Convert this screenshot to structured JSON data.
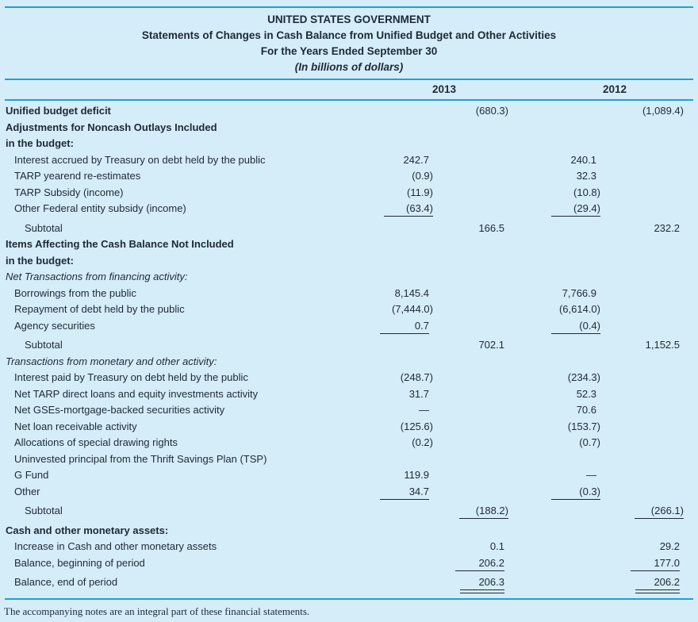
{
  "header": {
    "line1": "UNITED STATES GOVERNMENT",
    "line2": "Statements of Changes in Cash Balance from Unified Budget and Other Activities",
    "line3": "For the Years Ended September 30",
    "line4": "(In billions of dollars)"
  },
  "columns": {
    "year_left": "2013",
    "year_right": "2012"
  },
  "rows": [
    {
      "label": "Unified budget deficit",
      "bold": true,
      "indent": 0,
      "cells": [
        "",
        "(680.3)",
        "",
        "(1,089.4)"
      ],
      "lines": [
        "",
        "",
        "",
        ""
      ]
    },
    {
      "label": "Adjustments for Noncash Outlays Included",
      "bold": true,
      "indent": 0,
      "cells": [
        "",
        "",
        "",
        ""
      ],
      "lines": [
        "",
        "",
        "",
        ""
      ]
    },
    {
      "label": "in the budget:",
      "bold": true,
      "indent": 0,
      "cells": [
        "",
        "",
        "",
        ""
      ],
      "lines": [
        "",
        "",
        "",
        ""
      ]
    },
    {
      "label": "Interest accrued by Treasury on debt held by the public",
      "indent": 1,
      "cells": [
        "242.7",
        "",
        "240.1",
        ""
      ],
      "lines": [
        "",
        "",
        "",
        ""
      ]
    },
    {
      "label": "TARP yearend re-estimates",
      "indent": 1,
      "cells": [
        "(0.9)",
        "",
        "32.3",
        ""
      ],
      "lines": [
        "",
        "",
        "",
        ""
      ]
    },
    {
      "label": "TARP Subsidy (income)",
      "indent": 1,
      "cells": [
        "(11.9)",
        "",
        "(10.8)",
        ""
      ],
      "lines": [
        "",
        "",
        "",
        ""
      ]
    },
    {
      "label": "Other Federal entity subsidy (income)",
      "indent": 1,
      "cells": [
        "(63.4)",
        "",
        "(29.4)",
        ""
      ],
      "lines": [
        "s",
        "",
        "s",
        ""
      ],
      "gap": true
    },
    {
      "label": "Subtotal",
      "indent": 2,
      "cells": [
        "",
        "166.5",
        "",
        "232.2"
      ],
      "lines": [
        "",
        "",
        "",
        ""
      ]
    },
    {
      "label": "Items Affecting the Cash Balance Not Included",
      "bold": true,
      "indent": 0,
      "cells": [
        "",
        "",
        "",
        ""
      ],
      "lines": [
        "",
        "",
        "",
        ""
      ]
    },
    {
      "label": "in the budget:",
      "bold": true,
      "indent": 0,
      "cells": [
        "",
        "",
        "",
        ""
      ],
      "lines": [
        "",
        "",
        "",
        ""
      ]
    },
    {
      "label": "Net Transactions from financing activity:",
      "italic": true,
      "indent": 0,
      "cells": [
        "",
        "",
        "",
        ""
      ],
      "lines": [
        "",
        "",
        "",
        ""
      ]
    },
    {
      "label": "Borrowings from the public",
      "indent": 1,
      "cells": [
        "8,145.4",
        "",
        "7,766.9",
        ""
      ],
      "lines": [
        "",
        "",
        "",
        ""
      ]
    },
    {
      "label": "Repayment of debt held by the public",
      "indent": 1,
      "cells": [
        "(7,444.0)",
        "",
        "(6,614.0)",
        ""
      ],
      "lines": [
        "",
        "",
        "",
        ""
      ]
    },
    {
      "label": "Agency securities",
      "indent": 1,
      "cells": [
        "0.7",
        "",
        "(0.4)",
        ""
      ],
      "lines": [
        "s",
        "",
        "s",
        ""
      ],
      "gap": true
    },
    {
      "label": "Subtotal",
      "indent": 2,
      "cells": [
        "",
        "702.1",
        "",
        "1,152.5"
      ],
      "lines": [
        "",
        "",
        "",
        ""
      ]
    },
    {
      "label": "Transactions from monetary and other activity:",
      "italic": true,
      "indent": 0,
      "cells": [
        "",
        "",
        "",
        ""
      ],
      "lines": [
        "",
        "",
        "",
        ""
      ]
    },
    {
      "label": "Interest paid by Treasury on debt held by the public",
      "indent": 1,
      "cells": [
        "(248.7)",
        "",
        "(234.3)",
        ""
      ],
      "lines": [
        "",
        "",
        "",
        ""
      ]
    },
    {
      "label": "Net TARP direct loans and equity investments activity",
      "indent": 1,
      "cells": [
        "31.7",
        "",
        "52.3",
        ""
      ],
      "lines": [
        "",
        "",
        "",
        ""
      ]
    },
    {
      "label": "Net GSEs-mortgage-backed securities activity",
      "indent": 1,
      "cells": [
        "—",
        "",
        "70.6",
        ""
      ],
      "lines": [
        "",
        "",
        "",
        ""
      ]
    },
    {
      "label": "Net loan receivable activity",
      "indent": 1,
      "cells": [
        "(125.6)",
        "",
        "(153.7)",
        ""
      ],
      "lines": [
        "",
        "",
        "",
        ""
      ]
    },
    {
      "label": "Allocations of special drawing rights",
      "indent": 1,
      "cells": [
        "(0.2)",
        "",
        "(0.7)",
        ""
      ],
      "lines": [
        "",
        "",
        "",
        ""
      ]
    },
    {
      "label": "Uninvested principal from the Thrift Savings Plan (TSP)",
      "indent": 1,
      "cells": [
        "",
        "",
        "",
        ""
      ],
      "lines": [
        "",
        "",
        "",
        ""
      ]
    },
    {
      "label": "G Fund",
      "indent": 1,
      "cells": [
        "119.9",
        "",
        "—",
        ""
      ],
      "lines": [
        "",
        "",
        "",
        ""
      ]
    },
    {
      "label": "Other",
      "indent": 1,
      "cells": [
        "34.7",
        "",
        "(0.3)",
        ""
      ],
      "lines": [
        "s",
        "",
        "s",
        ""
      ],
      "gap": true
    },
    {
      "label": "Subtotal",
      "indent": 2,
      "cells": [
        "",
        "(188.2)",
        "",
        "(266.1)"
      ],
      "lines": [
        "",
        "s",
        "",
        "s"
      ],
      "gap": true
    },
    {
      "label": "Cash and other monetary assets:",
      "bold": true,
      "indent": 0,
      "cells": [
        "",
        "",
        "",
        ""
      ],
      "lines": [
        "",
        "",
        "",
        ""
      ]
    },
    {
      "label": "Increase in Cash and other monetary assets",
      "indent": 1,
      "cells": [
        "",
        "0.1",
        "",
        "29.2"
      ],
      "lines": [
        "",
        "",
        "",
        ""
      ]
    },
    {
      "label": "Balance, beginning of period",
      "indent": 1,
      "cells": [
        "",
        "206.2",
        "",
        "177.0"
      ],
      "lines": [
        "",
        "s",
        "",
        "s"
      ],
      "gap": true
    },
    {
      "label": "Balance, end of period",
      "indent": 1,
      "cells": [
        "",
        "206.3",
        "",
        "206.2"
      ],
      "lines": [
        "",
        "d",
        "",
        "d"
      ],
      "gap2": true
    }
  ],
  "footer": {
    "note": "The accompanying notes are an integral part of these financial statements."
  },
  "colors": {
    "background": "#d5edf9",
    "rule_blue": "#1f9fd9",
    "text_ink": "#1d2935"
  }
}
